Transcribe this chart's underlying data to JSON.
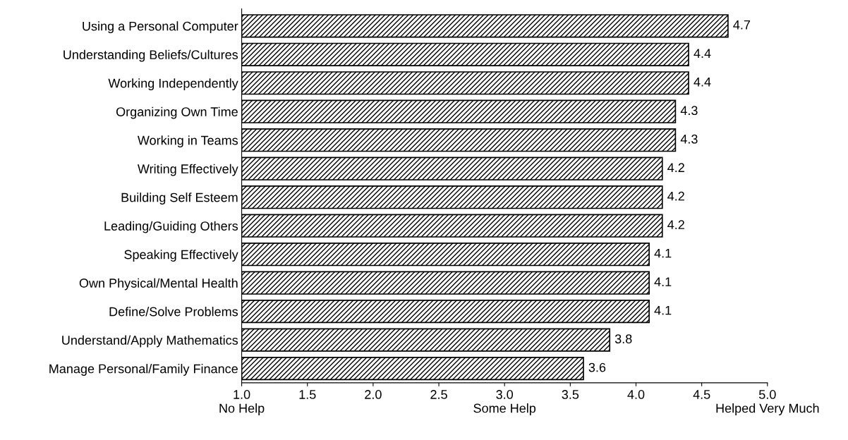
{
  "chart_data": {
    "type": "bar",
    "orientation": "horizontal",
    "categories": [
      "Using a Personal Computer",
      "Understanding Beliefs/Cultures",
      "Working Independently",
      "Organizing Own Time",
      "Working in Teams",
      "Writing Effectively",
      "Building Self Esteem",
      "Leading/Guiding Others",
      "Speaking Effectively",
      "Own Physical/Mental Health",
      "Define/Solve Problems",
      "Understand/Apply Mathematics",
      "Manage Personal/Family Finance"
    ],
    "values": [
      4.7,
      4.4,
      4.4,
      4.3,
      4.3,
      4.2,
      4.2,
      4.2,
      4.1,
      4.1,
      4.1,
      3.8,
      3.6
    ],
    "color": "#000000",
    "data_labels": true,
    "xlim": [
      1.0,
      5.0
    ],
    "xticks": [
      {
        "value": 1.0,
        "label": "1.0\nNo Help"
      },
      {
        "value": 1.5,
        "label": "1.5"
      },
      {
        "value": 2.0,
        "label": "2.0"
      },
      {
        "value": 2.5,
        "label": "2.5"
      },
      {
        "value": 3.0,
        "label": "3.0\nSome Help"
      },
      {
        "value": 3.5,
        "label": "3.5"
      },
      {
        "value": 4.0,
        "label": "4.0"
      },
      {
        "value": 4.5,
        "label": "4.5"
      },
      {
        "value": 5.0,
        "label": "5.0\nHelped Very Much"
      }
    ],
    "grid": false
  }
}
